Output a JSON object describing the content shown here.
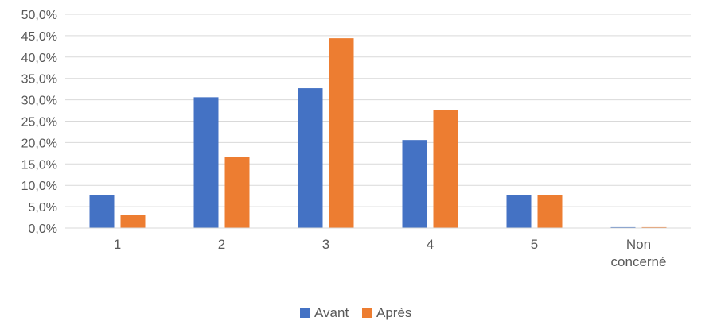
{
  "chart_data": {
    "type": "bar",
    "title": "",
    "xlabel": "",
    "ylabel": "",
    "categories": [
      "1",
      "2",
      "3",
      "4",
      "5",
      "Non concerné"
    ],
    "series": [
      {
        "name": "Avant",
        "color": "#4472C4",
        "values": [
          7.8,
          30.6,
          32.7,
          20.6,
          7.8,
          0.2
        ]
      },
      {
        "name": "Après",
        "color": "#ED7D31",
        "values": [
          3.0,
          16.7,
          44.4,
          27.6,
          7.8,
          0.2
        ]
      }
    ],
    "ylim": [
      0,
      50
    ],
    "yticks": [
      "0,0%",
      "5,0%",
      "10,0%",
      "15,0%",
      "20,0%",
      "25,0%",
      "30,0%",
      "35,0%",
      "40,0%",
      "45,0%",
      "50,0%"
    ],
    "grid": true,
    "legend_position": "bottom"
  }
}
